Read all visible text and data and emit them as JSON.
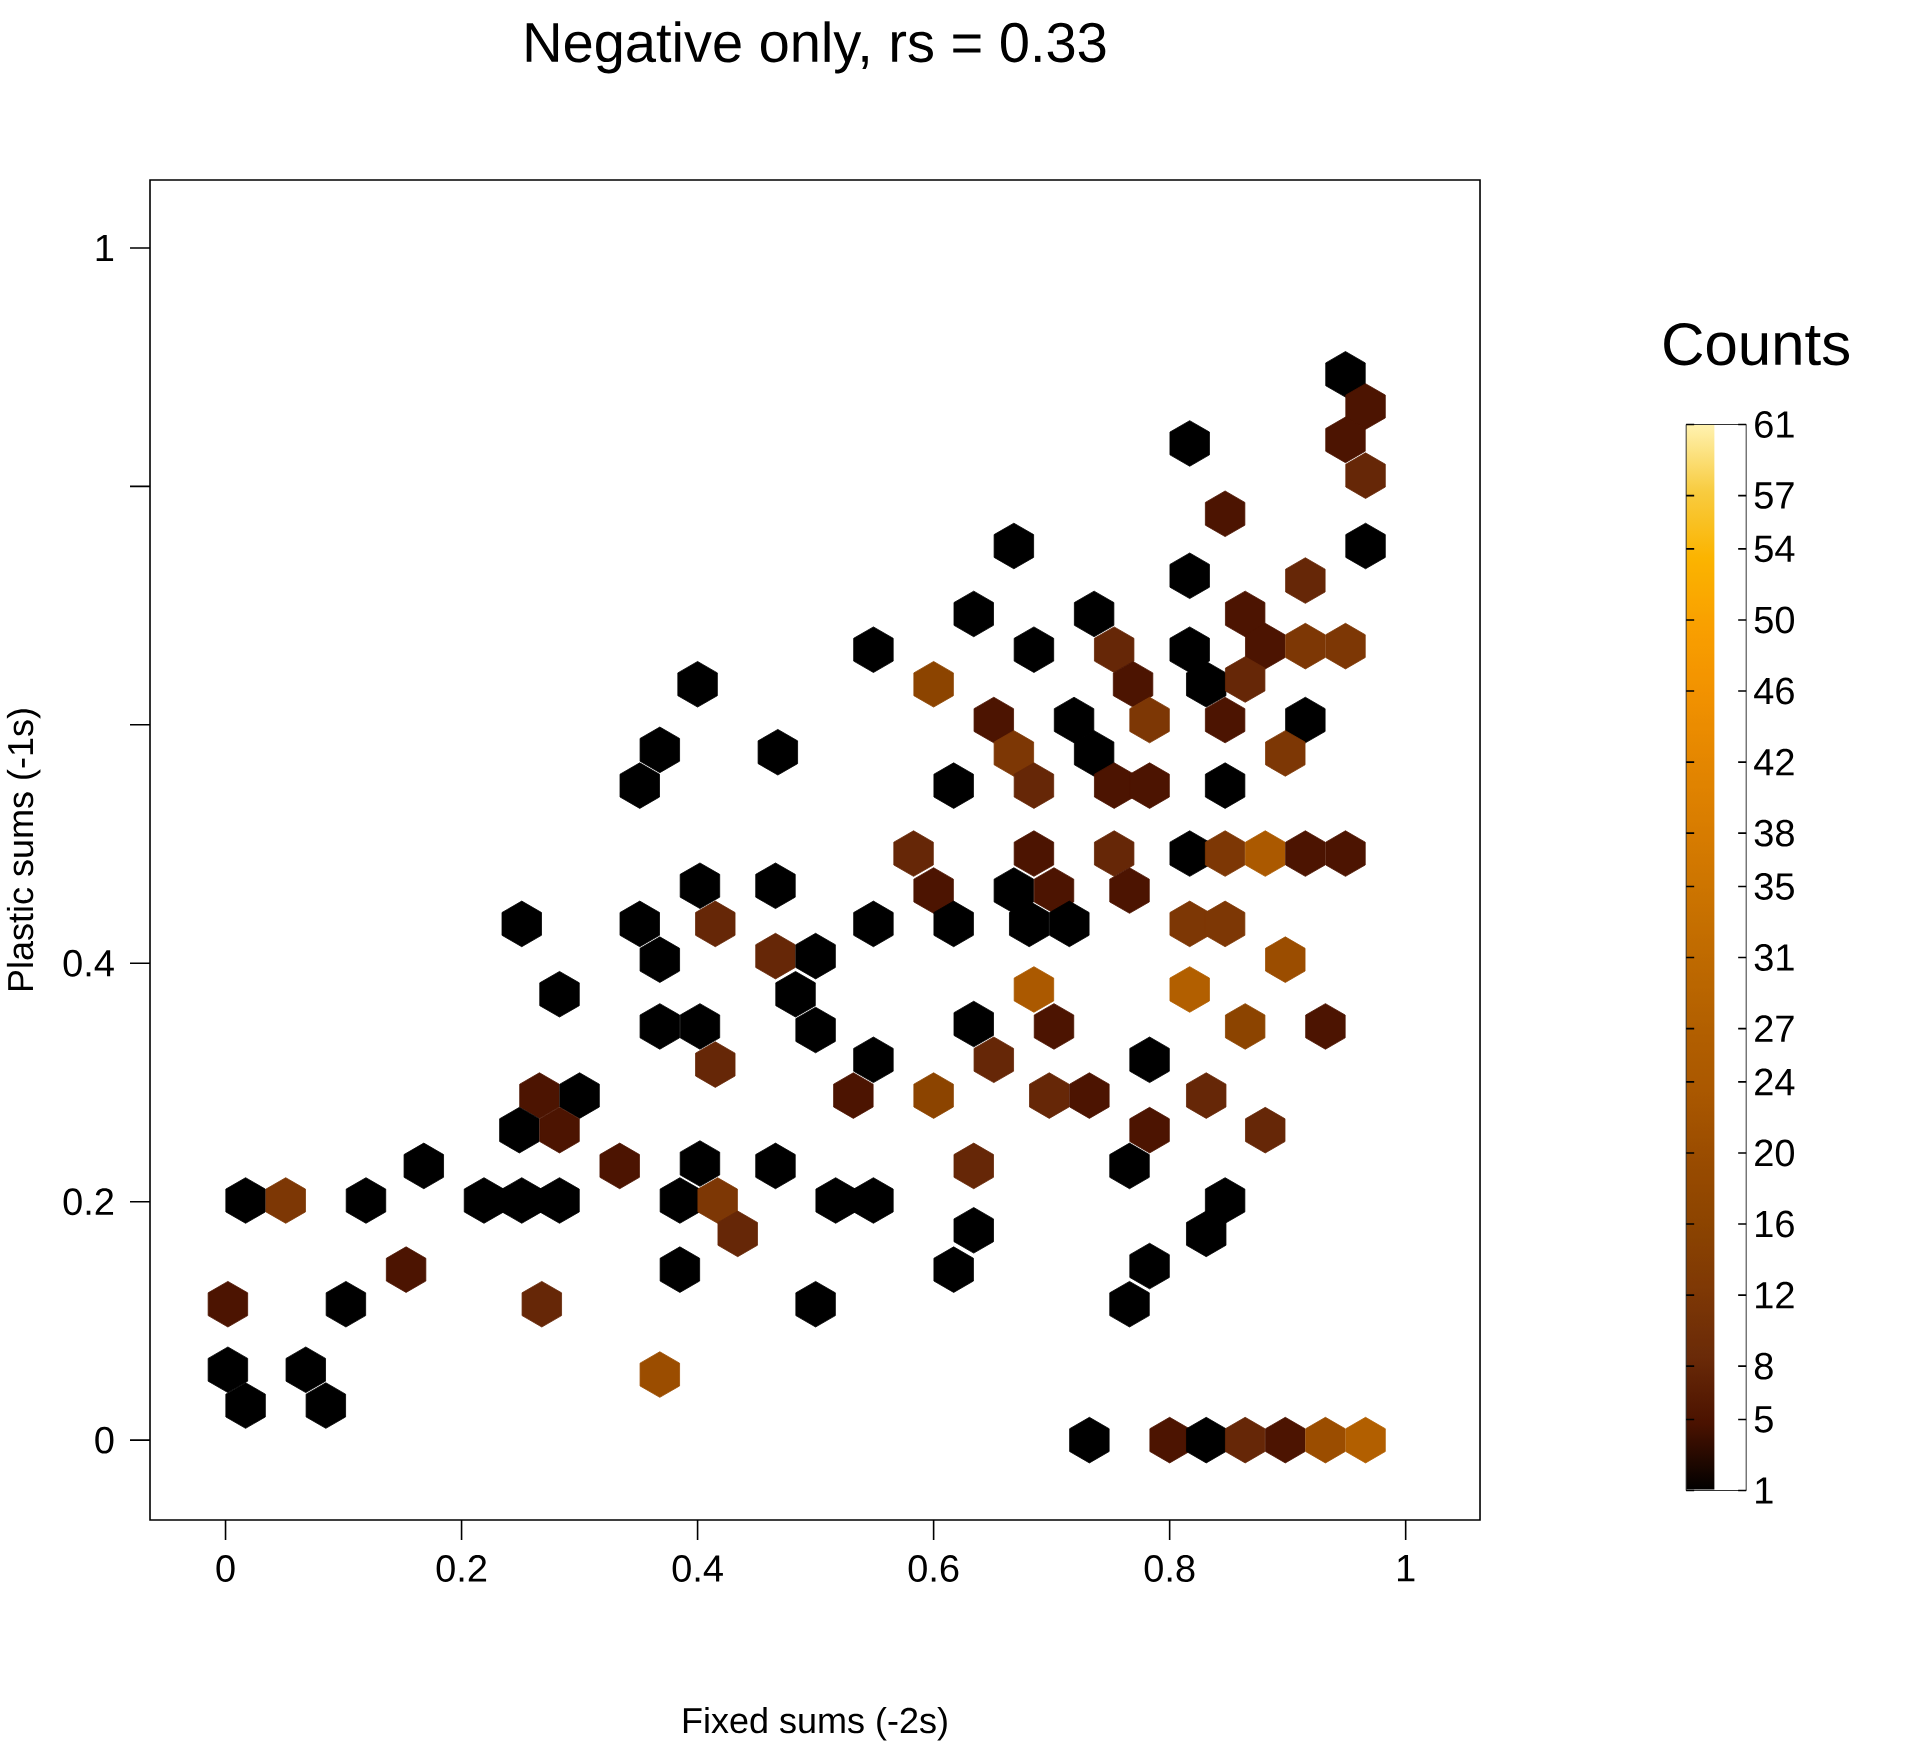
{
  "chart_data": {
    "type": "scatter",
    "title": "Negative only, rs = 0.33",
    "xlabel": "Fixed sums (-2s)",
    "ylabel": "Plastic sums (-1s)",
    "clabel": "Counts",
    "x": [
      0.949,
      0.966,
      0.949,
      0.966,
      0.817,
      0.847,
      0.966,
      0.915,
      0.817,
      0.668,
      0.634,
      0.736,
      0.864,
      0.549,
      0.685,
      0.753,
      0.817,
      0.881,
      0.915,
      0.949,
      0.6,
      0.769,
      0.831,
      0.864,
      0.4,
      0.651,
      0.719,
      0.783,
      0.847,
      0.915,
      0.368,
      0.468,
      0.668,
      0.736,
      0.898,
      0.351,
      0.617,
      0.685,
      0.753,
      0.783,
      0.847,
      0.583,
      0.685,
      0.753,
      0.817,
      0.847,
      0.881,
      0.915,
      0.949,
      0.402,
      0.466,
      0.6,
      0.668,
      0.702,
      0.766,
      0.251,
      0.351,
      0.415,
      0.549,
      0.617,
      0.681,
      0.715,
      0.817,
      0.847,
      0.368,
      0.466,
      0.5,
      0.898,
      0.283,
      0.483,
      0.685,
      0.817,
      0.368,
      0.402,
      0.5,
      0.634,
      0.702,
      0.864,
      0.932,
      0.415,
      0.549,
      0.651,
      0.783,
      0.266,
      0.3,
      0.532,
      0.6,
      0.698,
      0.732,
      0.831,
      0.249,
      0.283,
      0.783,
      0.881,
      0.168,
      0.334,
      0.402,
      0.466,
      0.634,
      0.766,
      0.017,
      0.051,
      0.119,
      0.219,
      0.251,
      0.283,
      0.385,
      0.417,
      0.517,
      0.549,
      0.847,
      0.434,
      0.634,
      0.831,
      0.153,
      0.385,
      0.617,
      0.783,
      0.002,
      0.102,
      0.268,
      0.5,
      0.766,
      0.002,
      0.017,
      0.068,
      0.085,
      0.368,
      0.732,
      0.8,
      0.831,
      0.864,
      0.898,
      0.932,
      0.966
    ],
    "values": [
      0.894,
      0.867,
      0.839,
      0.809,
      0.836,
      0.777,
      0.75,
      0.721,
      0.725,
      0.75,
      0.693,
      0.693,
      0.693,
      0.663,
      0.663,
      0.663,
      0.663,
      0.666,
      0.666,
      0.666,
      0.634,
      0.634,
      0.634,
      0.638,
      0.634,
      0.604,
      0.604,
      0.604,
      0.604,
      0.604,
      0.579,
      0.577,
      0.576,
      0.576,
      0.576,
      0.549,
      0.549,
      0.549,
      0.549,
      0.549,
      0.549,
      0.492,
      0.492,
      0.492,
      0.492,
      0.492,
      0.492,
      0.492,
      0.492,
      0.465,
      0.465,
      0.461,
      0.461,
      0.461,
      0.461,
      0.433,
      0.433,
      0.433,
      0.433,
      0.433,
      0.433,
      0.433,
      0.433,
      0.433,
      0.403,
      0.406,
      0.406,
      0.403,
      0.374,
      0.374,
      0.378,
      0.378,
      0.347,
      0.347,
      0.344,
      0.349,
      0.347,
      0.347,
      0.347,
      0.315,
      0.319,
      0.319,
      0.319,
      0.289,
      0.289,
      0.289,
      0.289,
      0.289,
      0.289,
      0.289,
      0.26,
      0.26,
      0.26,
      0.26,
      0.23,
      0.23,
      0.232,
      0.23,
      0.23,
      0.23,
      0.201,
      0.201,
      0.201,
      0.201,
      0.201,
      0.201,
      0.201,
      0.201,
      0.201,
      0.201,
      0.201,
      0.173,
      0.176,
      0.173,
      0.143,
      0.143,
      0.143,
      0.146,
      0.114,
      0.114,
      0.114,
      0.114,
      0.114,
      0.059,
      0.029,
      0.059,
      0.029,
      0.055,
      0,
      0,
      0,
      0,
      0,
      0,
      0
    ],
    "cvalues": [
      1,
      5,
      5,
      8,
      1,
      5,
      1,
      8,
      1,
      1,
      1,
      1,
      5,
      1,
      1,
      8,
      1,
      5,
      12,
      12,
      16,
      5,
      1,
      8,
      1,
      5,
      1,
      12,
      5,
      1,
      1,
      1,
      12,
      1,
      12,
      1,
      1,
      8,
      5,
      5,
      1,
      8,
      5,
      8,
      1,
      12,
      24,
      5,
      5,
      1,
      1,
      5,
      1,
      5,
      5,
      1,
      1,
      8,
      1,
      1,
      1,
      1,
      12,
      12,
      1,
      8,
      1,
      20,
      1,
      1,
      24,
      27,
      1,
      1,
      1,
      1,
      5,
      16,
      5,
      8,
      1,
      8,
      1,
      5,
      1,
      5,
      16,
      8,
      5,
      8,
      1,
      5,
      5,
      8,
      1,
      5,
      1,
      1,
      8,
      1,
      1,
      12,
      1,
      1,
      1,
      1,
      1,
      12,
      1,
      1,
      1,
      8,
      1,
      1,
      5,
      1,
      1,
      1,
      5,
      1,
      8,
      1,
      1,
      1,
      1,
      1,
      1,
      20,
      1,
      5,
      1,
      8,
      5,
      20,
      27
    ],
    "xlim": [
      -0.064,
      1.063
    ],
    "ylim": [
      -0.067,
      1.057
    ],
    "xticks": [
      0,
      0.2,
      0.4,
      0.6,
      0.8,
      1
    ],
    "yticks": [
      0,
      0.2,
      0.4,
      {
        "value": 0.6,
        "label": null
      },
      {
        "value": 0.8,
        "label": null
      },
      1
    ],
    "clim": [
      1,
      61
    ],
    "cticks": [
      1,
      5,
      8,
      12,
      16,
      20,
      24,
      27,
      31,
      35,
      38,
      42,
      46,
      50,
      54,
      57,
      61
    ]
  }
}
